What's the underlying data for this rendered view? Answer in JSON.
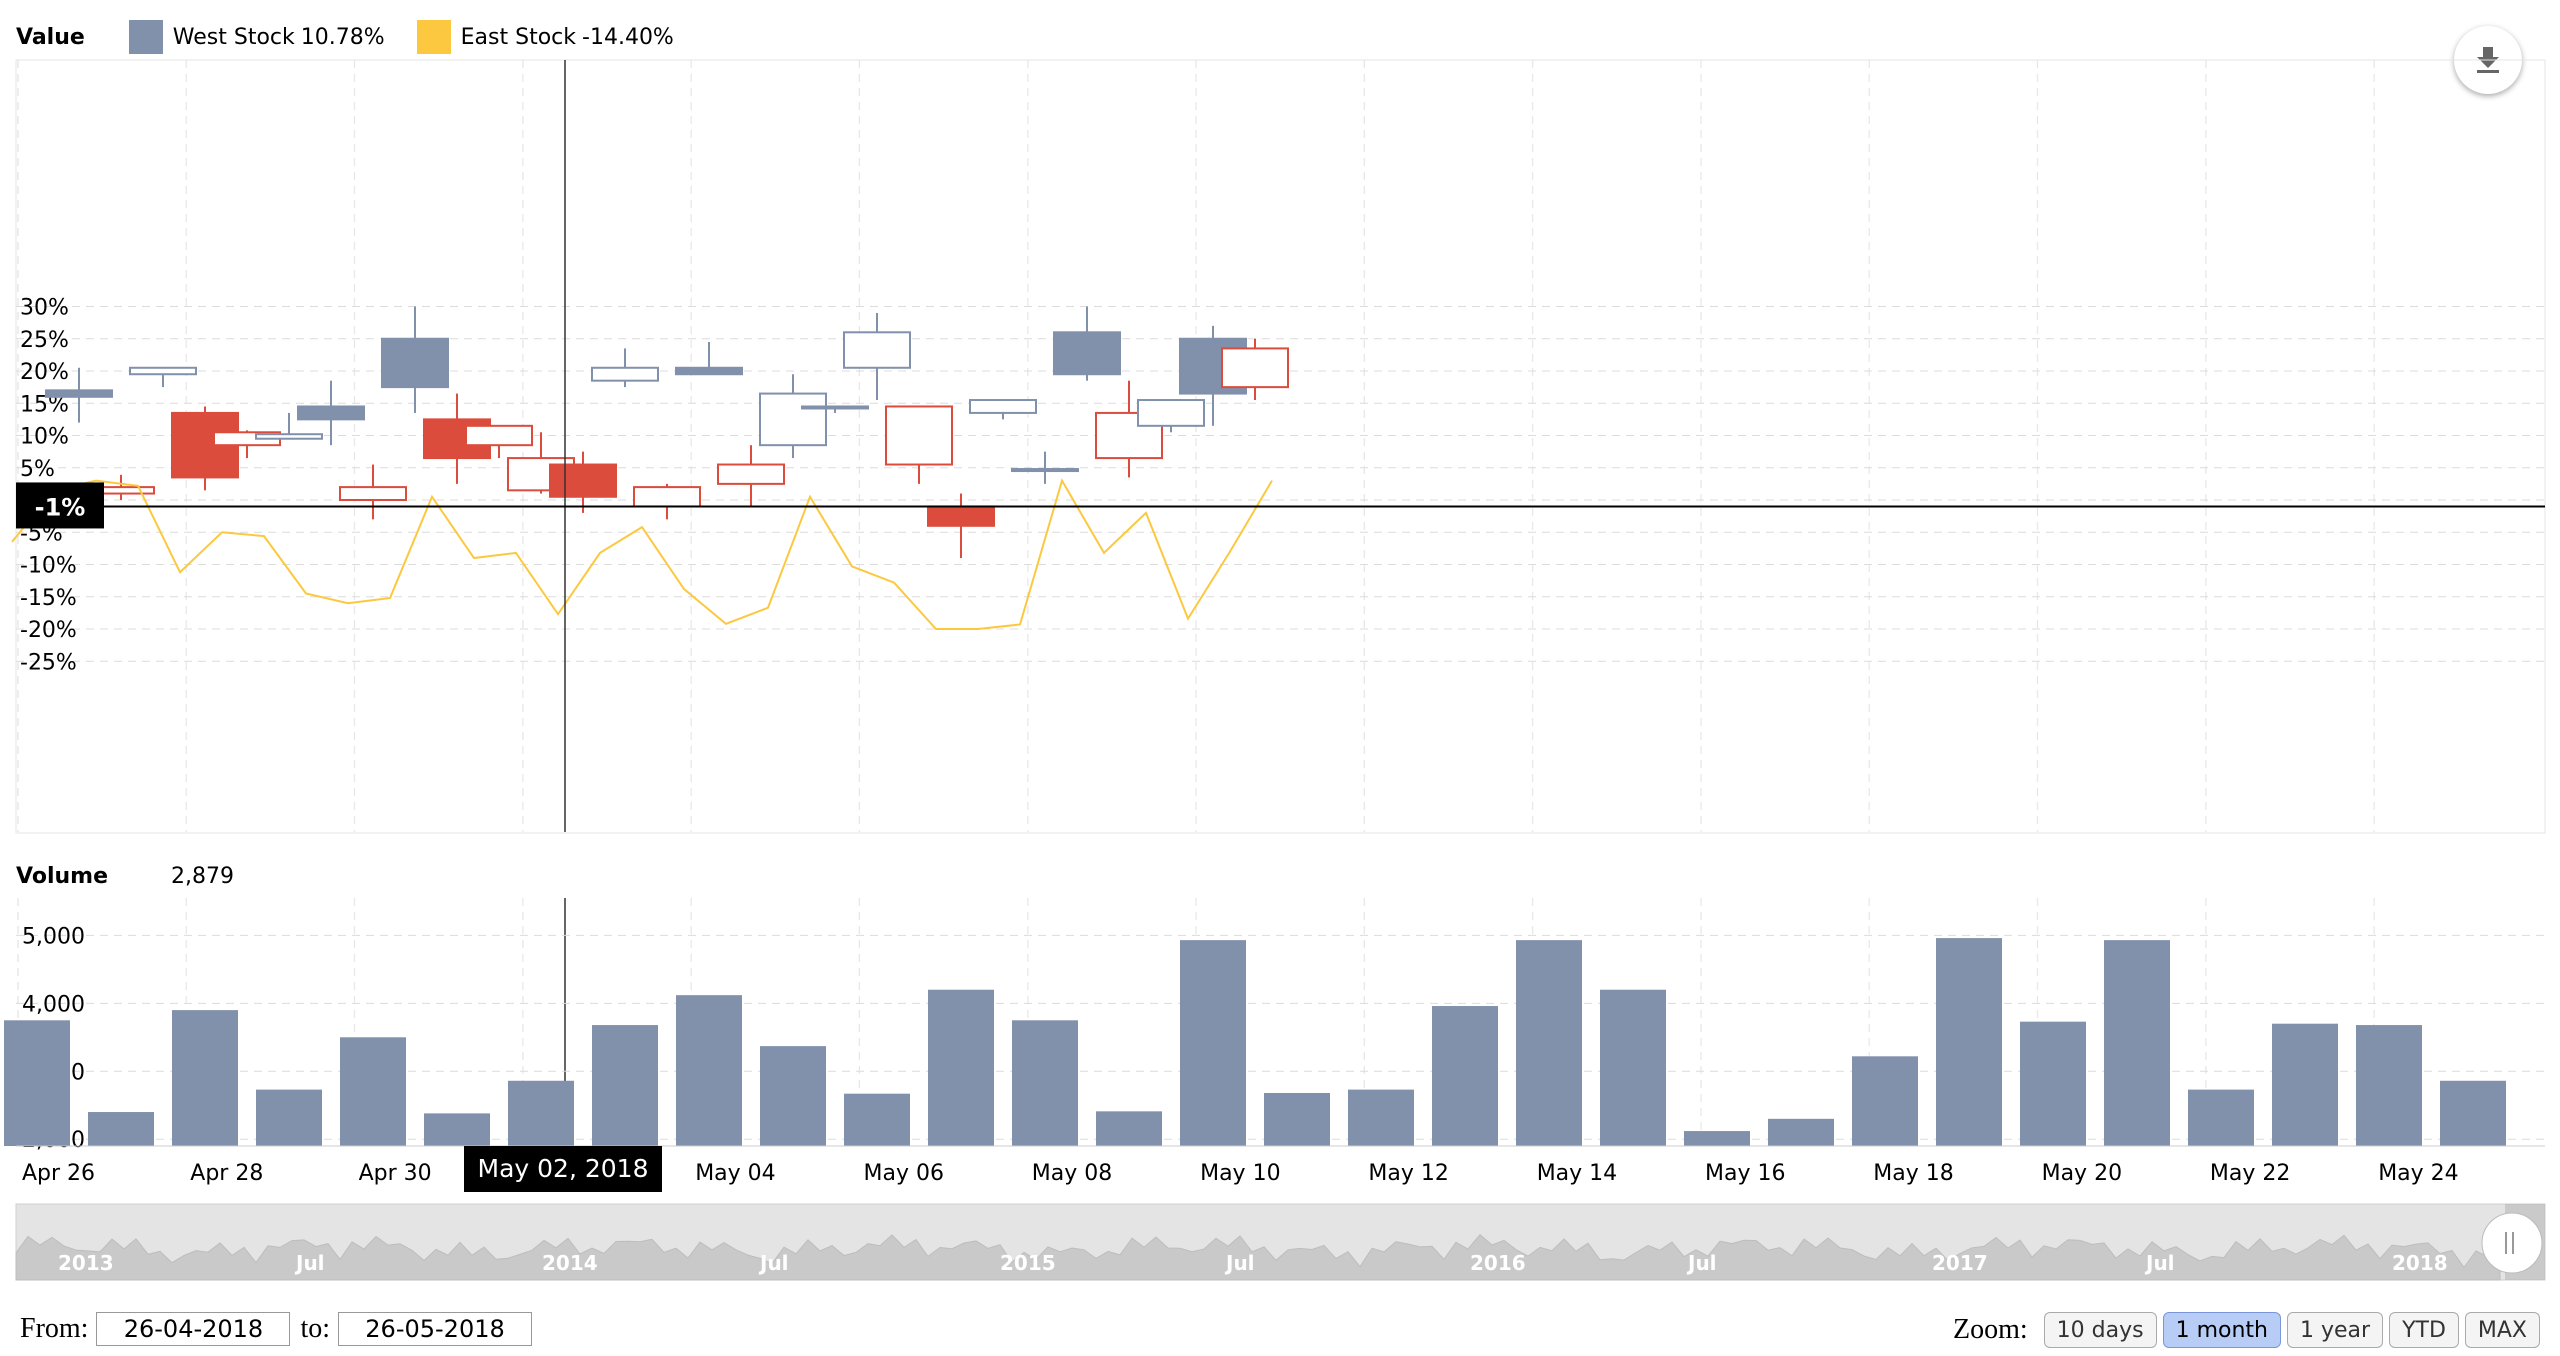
{
  "legend": {
    "label": "Value",
    "items": [
      {
        "name": "West Stock",
        "value": "10.78%",
        "color": "#8190ab"
      },
      {
        "name": "East Stock",
        "value": "-14.40%",
        "color": "#fbc83f"
      }
    ]
  },
  "volume_legend": {
    "label": "Volume",
    "value": "2,879"
  },
  "crosshair": {
    "y_label": "-1%",
    "x_label": "May 02, 2018"
  },
  "navigator": {
    "labels": [
      "2013",
      "Jul",
      "2014",
      "Jul",
      "2015",
      "Jul",
      "2016",
      "Jul",
      "2017",
      "Jul",
      "2018"
    ]
  },
  "range": {
    "from_label": "From:",
    "from_value": "26-04-2018",
    "to_label": "to:",
    "to_value": "26-05-2018"
  },
  "zoom": {
    "label": "Zoom:",
    "buttons": [
      "10 days",
      "1 month",
      "1 year",
      "YTD",
      "MAX"
    ],
    "active": "1 month"
  },
  "colors": {
    "up": "#8190ab",
    "down": "#db4c3c",
    "line": "#fbc83f",
    "volume": "#8190ab"
  },
  "chart_data": [
    {
      "type": "candlestick",
      "series": [
        {
          "name": "West Stock",
          "style": "candlestick"
        },
        {
          "name": "East Stock",
          "style": "line"
        }
      ],
      "x_labels": [
        "Apr 26",
        "Apr 28",
        "Apr 30",
        "May 02, 2018",
        "May 04",
        "May 06",
        "May 08",
        "May 10",
        "May 12",
        "May 14",
        "May 16",
        "May 18",
        "May 20",
        "May 22",
        "May 24"
      ],
      "yticks": [
        "30%",
        "25%",
        "20%",
        "15%",
        "10%",
        "5%",
        "0%",
        "-5%",
        "-10%",
        "-15%",
        "-20%",
        "-25%"
      ],
      "ylim": [
        -26,
        34
      ],
      "candles": [
        {
          "date": "Apr 27",
          "open": 16,
          "high": 20.5,
          "low": 12,
          "close": 17
        },
        {
          "date": "Apr 28",
          "open": 2,
          "high": 3.9,
          "low": 0,
          "close": 1
        },
        {
          "date": "Apr 29",
          "open": 19.5,
          "high": 20.5,
          "low": 17.5,
          "close": 20.5
        },
        {
          "date": "Apr 30",
          "open": 13.5,
          "high": 14.5,
          "low": 1.5,
          "close": 3.5
        },
        {
          "date": "May 01",
          "open": 10.5,
          "high": 10.8,
          "low": 6.5,
          "close": 8.5
        },
        {
          "date": "May 02",
          "open": 9.5,
          "high": 13.5,
          "low": 9.5,
          "close": 10.2
        },
        {
          "date": "May 03",
          "open": 12.5,
          "high": 18.5,
          "low": 8.5,
          "close": 14.5
        },
        {
          "date": "May 04",
          "open": 2,
          "high": 5.5,
          "low": -3,
          "close": 0
        },
        {
          "date": "May 05",
          "open": 17.5,
          "high": 30,
          "low": 13.5,
          "close": 25
        },
        {
          "date": "May 06",
          "open": 12.5,
          "high": 16.5,
          "low": 2.5,
          "close": 6.5
        },
        {
          "date": "May 07",
          "open": 11.5,
          "high": 11.5,
          "low": 6.5,
          "close": 8.5
        },
        {
          "date": "May 08",
          "open": 6.5,
          "high": 10.5,
          "low": 1,
          "close": 1.5
        },
        {
          "date": "May 09",
          "open": 5.5,
          "high": 7.5,
          "low": -2,
          "close": 0.5
        },
        {
          "date": "May 10",
          "open": 18.5,
          "high": 23.5,
          "low": 17.5,
          "close": 20.5
        },
        {
          "date": "May 11",
          "open": 2,
          "high": 2.5,
          "low": -3,
          "close": -1
        },
        {
          "date": "May 12",
          "open": 19.5,
          "high": 24.5,
          "low": 19.5,
          "close": 20.5
        },
        {
          "date": "May 13",
          "open": 5.5,
          "high": 8.5,
          "low": -1,
          "close": 2.5
        },
        {
          "date": "May 14",
          "open": 8.5,
          "high": 19.5,
          "low": 6.5,
          "close": 16.5
        },
        {
          "date": "May 15",
          "open": 14.5,
          "high": 14.5,
          "low": 13.5,
          "close": 14.5
        },
        {
          "date": "May 16",
          "open": 20.5,
          "high": 29,
          "low": 15.5,
          "close": 26
        },
        {
          "date": "May 17",
          "open": 14.5,
          "high": 14.5,
          "low": 2.5,
          "close": 5.5
        },
        {
          "date": "May 18",
          "open": -1,
          "high": 1,
          "low": -9,
          "close": -4
        },
        {
          "date": "May 19",
          "open": 13.5,
          "high": 15.5,
          "low": 12.5,
          "close": 15.5
        },
        {
          "date": "May 20",
          "open": 4.8,
          "high": 7.5,
          "low": 2.5,
          "close": 4.8
        },
        {
          "date": "May 21",
          "open": 19.5,
          "high": 30,
          "low": 18.5,
          "close": 26
        },
        {
          "date": "May 22",
          "open": 13.5,
          "high": 18.5,
          "low": 3.5,
          "close": 6.5
        },
        {
          "date": "May 23",
          "open": 11.5,
          "high": 15.5,
          "low": 10.5,
          "close": 15.5
        },
        {
          "date": "May 24",
          "open": 16.5,
          "high": 27,
          "low": 11.5,
          "close": 25
        },
        {
          "date": "May 25",
          "open": 23.5,
          "high": 25,
          "low": 15.5,
          "close": 17.5
        }
      ],
      "line_values": [
        -6.5,
        1.5,
        3,
        2.2,
        -11.2,
        -5,
        -5.6,
        -14.5,
        -16,
        -15.2,
        0.5,
        -9,
        -8.2,
        -17.7,
        -8.2,
        -4.2,
        -13.8,
        -19.2,
        -16.7,
        0.5,
        -10.3,
        -12.8,
        -20,
        -20,
        -19.3,
        3,
        -8.2,
        -2,
        -18.4,
        -8,
        3
      ]
    },
    {
      "type": "bar",
      "series": [
        {
          "name": "Volume"
        }
      ],
      "yticks": [
        "5,000",
        "4,000",
        "3,000",
        "2,000"
      ],
      "ylim": [
        1900,
        5550
      ],
      "values": [
        3750,
        2400,
        3900,
        2730,
        3500,
        2380,
        2860,
        3680,
        4120,
        3370,
        2670,
        4200,
        3750,
        2410,
        4930,
        2680,
        2730,
        3960,
        4930,
        4200,
        2120,
        2300,
        3220,
        4960,
        3730,
        4930,
        2730,
        3700,
        3680,
        2860
      ]
    }
  ]
}
